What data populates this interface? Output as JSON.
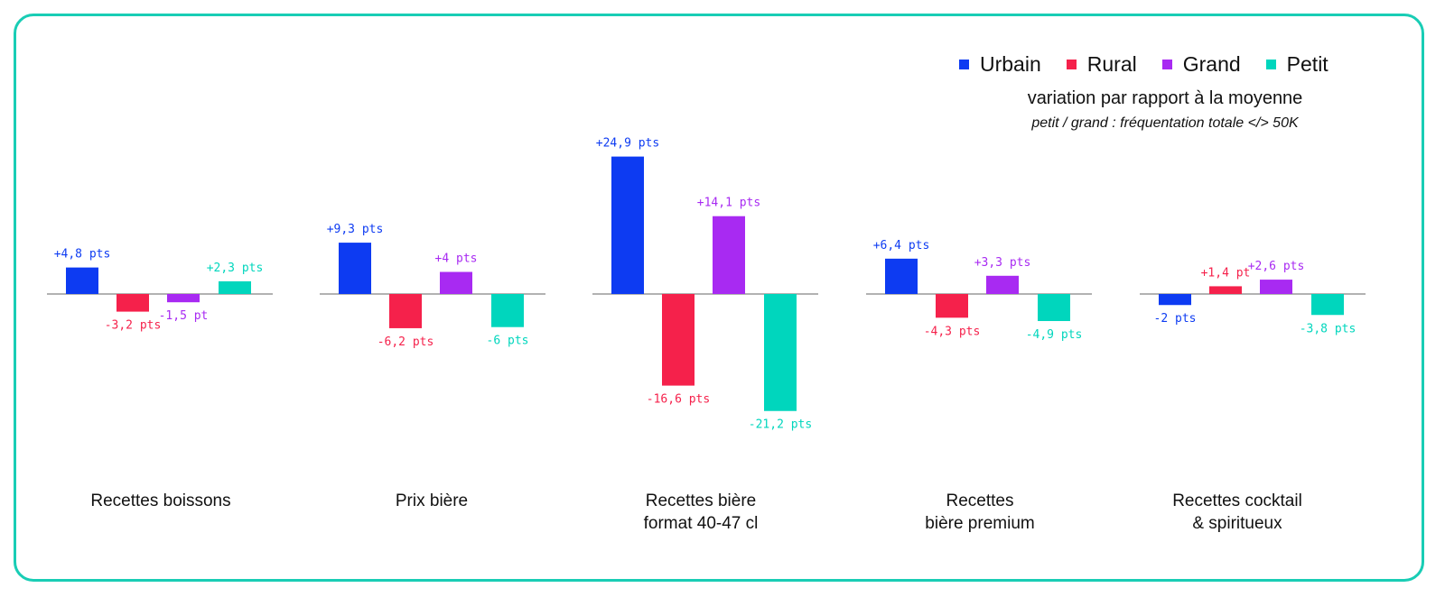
{
  "legend": [
    {
      "name": "Urbain",
      "color": "#0d3bf2"
    },
    {
      "name": "Rural",
      "color": "#f5214b"
    },
    {
      "name": "Grand",
      "color": "#a82af2"
    },
    {
      "name": "Petit",
      "color": "#00d6bd"
    }
  ],
  "subtitle": "variation par rapport à la moyenne",
  "note": "petit / grand : fréquentation totale </> 50K",
  "chart_data": {
    "type": "bar",
    "unit": "pts",
    "categories": [
      [
        "Recettes boissons"
      ],
      [
        "Prix bière"
      ],
      [
        "Recettes bière",
        "format 40-47 cl"
      ],
      [
        "Recettes",
        "bière premium"
      ],
      [
        "Recettes cocktail",
        "& spiritueux"
      ]
    ],
    "series": [
      {
        "name": "Urbain",
        "color": "#0d3bf2",
        "values": [
          4.8,
          9.3,
          24.9,
          6.4,
          -2
        ],
        "labels": [
          "+4,8 pts",
          "+9,3 pts",
          "+24,9 pts",
          "+6,4 pts",
          "-2 pts"
        ]
      },
      {
        "name": "Rural",
        "color": "#f5214b",
        "values": [
          -3.2,
          -6.2,
          -16.6,
          -4.3,
          1.4
        ],
        "labels": [
          "-3,2 pts",
          "-6,2 pts",
          "-16,6 pts",
          "-4,3 pts",
          "+1,4 pt"
        ]
      },
      {
        "name": "Grand",
        "color": "#a82af2",
        "values": [
          -1.5,
          4,
          14.1,
          3.3,
          2.6
        ],
        "labels": [
          "-1,5 pt",
          "+4 pts",
          "+14,1 pts",
          "+3,3 pts",
          "+2,6 pts"
        ]
      },
      {
        "name": "Petit",
        "color": "#00d6bd",
        "values": [
          2.3,
          -6,
          -21.2,
          -4.9,
          -3.8
        ],
        "labels": [
          "+2,3 pts",
          "-6 pts",
          "-21,2 pts",
          "-4,9 pts",
          "-3,8 pts"
        ]
      }
    ],
    "grid": false,
    "legend_position": "top-right"
  }
}
